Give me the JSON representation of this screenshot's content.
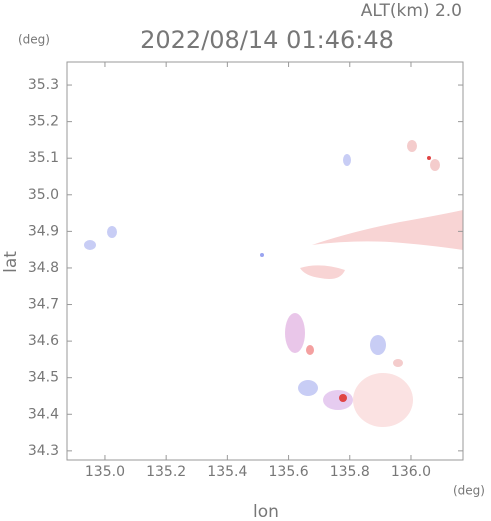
{
  "chart_data": {
    "type": "map",
    "title": "2022/08/14 01:46:48",
    "altitude_label": "ALT(km) 2.0",
    "x_label": "lon",
    "y_label": "lat",
    "x_unit": "(deg)",
    "y_unit": "(deg)",
    "xlim": [
      134.876,
      136.17
    ],
    "ylim": [
      34.275,
      35.363
    ],
    "xticks": [
      {
        "value": 135,
        "label": "135.0"
      },
      135.2,
      135.4,
      135.6,
      135.8,
      {
        "value": 136,
        "label": "136.0"
      }
    ],
    "yticks": [
      34.3,
      34.4,
      34.5,
      34.6,
      34.7,
      34.8,
      34.9,
      {
        "value": 35,
        "label": "35.0"
      },
      35.1,
      35.2,
      35.3
    ]
  }
}
